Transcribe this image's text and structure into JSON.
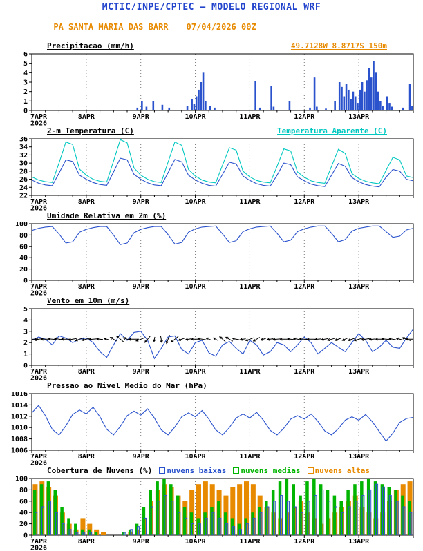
{
  "header": {
    "title": "MCTIC/INPE/CPTEC — MODELO REGIONAL WRF",
    "station": "PA SANTA MARIA DAS BARR",
    "run_datetime": "07/04/2026 00Z",
    "coords": "49.7128W 8.8717S 150m"
  },
  "colors": {
    "header_blue": "#2244cc",
    "orange": "#e78a00",
    "line_blue": "#2a52cc",
    "cyan": "#00c8c0",
    "green": "#00b400",
    "black": "#000000"
  },
  "x_axis": {
    "labels": [
      "7APR",
      "8APR",
      "9APR",
      "10APR",
      "11APR",
      "12APR",
      "13APR"
    ],
    "year": "2026",
    "hours_total": 168,
    "day_step": 24
  },
  "chart_data": [
    {
      "id": "precipitacao",
      "type": "bar",
      "title": "Precipitacao (mm/h)",
      "title_right": "49.7128W 8.8717S 150m",
      "title_right_color": "#e78a00",
      "ylim": [
        0,
        6
      ],
      "yticks": [
        0,
        1,
        2,
        3,
        4,
        5,
        6
      ],
      "color": "#2a52cc",
      "bars": [
        [
          46,
          0.3
        ],
        [
          48,
          1.0
        ],
        [
          50,
          0.4
        ],
        [
          53,
          1.0
        ],
        [
          57,
          0.6
        ],
        [
          60,
          0.3
        ],
        [
          68,
          0.5
        ],
        [
          70,
          1.2
        ],
        [
          71,
          0.7
        ],
        [
          72,
          1.5
        ],
        [
          73,
          2.2
        ],
        [
          74,
          3.0
        ],
        [
          75,
          4.0
        ],
        [
          76,
          1.0
        ],
        [
          78,
          0.5
        ],
        [
          80,
          0.3
        ],
        [
          98,
          3.1
        ],
        [
          100,
          0.3
        ],
        [
          105,
          2.6
        ],
        [
          106,
          0.4
        ],
        [
          113,
          1.0
        ],
        [
          122,
          0.3
        ],
        [
          124,
          3.5
        ],
        [
          125,
          0.4
        ],
        [
          129,
          0.2
        ],
        [
          133,
          1.0
        ],
        [
          135,
          3.0
        ],
        [
          136,
          2.5
        ],
        [
          137,
          1.5
        ],
        [
          138,
          2.8
        ],
        [
          139,
          2.2
        ],
        [
          140,
          1.2
        ],
        [
          141,
          2.0
        ],
        [
          142,
          1.5
        ],
        [
          143,
          0.8
        ],
        [
          144,
          2.2
        ],
        [
          145,
          3.0
        ],
        [
          146,
          2.0
        ],
        [
          147,
          3.2
        ],
        [
          148,
          4.5
        ],
        [
          149,
          3.5
        ],
        [
          150,
          5.2
        ],
        [
          151,
          4.0
        ],
        [
          152,
          2.0
        ],
        [
          153,
          1.0
        ],
        [
          154,
          0.5
        ],
        [
          156,
          1.5
        ],
        [
          157,
          0.8
        ],
        [
          158,
          0.4
        ],
        [
          163,
          0.3
        ],
        [
          166,
          2.8
        ],
        [
          167,
          0.5
        ]
      ]
    },
    {
      "id": "temperatura-2m",
      "type": "line",
      "title": "2-m Temperatura (C)",
      "title_right": "Temperatura Aparente (C)",
      "title_right_color": "#00c8c0",
      "ylim": [
        22,
        36
      ],
      "yticks": [
        22,
        24,
        26,
        28,
        30,
        32,
        34,
        36
      ],
      "x_step_hours": 3,
      "series": [
        {
          "name": "2-m Temperatura (C)",
          "color": "#2a52cc",
          "values": [
            25.8,
            25.0,
            24.6,
            24.4,
            27.5,
            30.8,
            30.4,
            27.0,
            26.0,
            25.2,
            24.7,
            24.5,
            27.8,
            31.2,
            30.8,
            27.2,
            26.0,
            25.1,
            24.6,
            24.4,
            27.6,
            30.9,
            30.3,
            27.0,
            25.8,
            25.0,
            24.5,
            24.3,
            27.2,
            30.2,
            29.8,
            26.8,
            25.7,
            24.9,
            24.5,
            24.3,
            27.0,
            30.0,
            29.6,
            26.6,
            25.6,
            24.8,
            24.4,
            24.2,
            27.0,
            29.9,
            29.2,
            26.4,
            25.4,
            24.7,
            24.3,
            24.1,
            26.5,
            28.4,
            28.0,
            26.0,
            25.6
          ]
        },
        {
          "name": "Temperatura Aparente (C)",
          "color": "#00c8c0",
          "values": [
            26.6,
            25.8,
            25.4,
            25.2,
            30.0,
            35.2,
            34.6,
            28.5,
            27.0,
            26.0,
            25.5,
            25.3,
            30.5,
            35.8,
            35.0,
            28.8,
            27.0,
            26.0,
            25.4,
            25.2,
            30.2,
            35.2,
            34.4,
            28.4,
            26.8,
            25.8,
            25.3,
            25.1,
            29.5,
            33.8,
            33.2,
            28.0,
            26.6,
            25.7,
            25.3,
            25.1,
            29.2,
            33.5,
            33.0,
            27.8,
            26.5,
            25.6,
            25.2,
            25.0,
            29.2,
            33.4,
            32.4,
            27.4,
            26.2,
            25.5,
            25.1,
            24.9,
            28.2,
            31.4,
            30.8,
            26.8,
            26.4
          ]
        }
      ]
    },
    {
      "id": "umidade-relativa",
      "type": "line",
      "title": "Umidade Relativa em 2m (%)",
      "ylim": [
        0,
        100
      ],
      "yticks": [
        0,
        20,
        40,
        60,
        80,
        100
      ],
      "x_step_hours": 3,
      "series": [
        {
          "name": "Umidade Relativa em 2m (%)",
          "color": "#2a52cc",
          "values": [
            88,
            92,
            94,
            95,
            82,
            66,
            68,
            85,
            90,
            93,
            95,
            95,
            80,
            63,
            66,
            84,
            90,
            93,
            95,
            95,
            81,
            64,
            67,
            85,
            91,
            94,
            95,
            96,
            82,
            67,
            70,
            86,
            91,
            94,
            95,
            96,
            83,
            68,
            71,
            86,
            91,
            94,
            96,
            96,
            83,
            68,
            72,
            87,
            92,
            94,
            96,
            96,
            86,
            76,
            78,
            89,
            92
          ]
        }
      ]
    },
    {
      "id": "vento-10m",
      "type": "wind",
      "title": "Vento em 10m (m/s)",
      "ylim": [
        0,
        5
      ],
      "yticks": [
        0,
        1,
        2,
        3,
        4,
        5
      ],
      "x_step_hours": 3,
      "arrow_y": 2.3,
      "series": [
        {
          "name": "Vento em 10m (m/s)",
          "color": "#2a52cc",
          "values": [
            2.2,
            2.5,
            2.3,
            1.8,
            2.6,
            2.4,
            2.0,
            2.3,
            2.4,
            2.0,
            1.2,
            0.7,
            1.8,
            2.8,
            2.2,
            2.9,
            3.0,
            2.2,
            0.6,
            1.5,
            2.5,
            2.6,
            1.4,
            1.0,
            2.0,
            2.2,
            1.1,
            0.8,
            1.8,
            2.1,
            1.5,
            1.0,
            2.2,
            1.8,
            0.9,
            1.2,
            2.0,
            1.8,
            1.2,
            1.8,
            2.5,
            2.0,
            1.0,
            1.5,
            2.0,
            1.6,
            1.2,
            2.0,
            2.8,
            2.2,
            1.2,
            1.6,
            2.2,
            1.6,
            1.5,
            2.4,
            3.2
          ]
        }
      ],
      "directions": [
        185,
        190,
        180,
        175,
        170,
        180,
        190,
        200,
        195,
        185,
        175,
        165,
        150,
        140,
        160,
        180,
        200,
        230,
        260,
        280,
        250,
        220,
        200,
        190,
        180,
        170,
        160,
        150,
        140,
        150,
        170,
        190,
        200,
        210,
        200,
        190,
        185,
        180,
        175,
        170,
        175,
        180,
        185,
        190,
        195,
        200,
        205,
        200,
        195,
        190,
        185,
        180,
        175,
        170,
        165,
        160,
        180
      ]
    },
    {
      "id": "pressao-nivel-mar",
      "type": "line",
      "title": "Pressao ao Nivel Medio do Mar (hPa)",
      "ylim": [
        1006,
        1016
      ],
      "yticks": [
        1006,
        1008,
        1010,
        1012,
        1014,
        1016
      ],
      "x_step_hours": 3,
      "series": [
        {
          "name": "Pressao ao Nivel Medio do Mar (hPa)",
          "color": "#2a52cc",
          "values": [
            1012.6,
            1013.9,
            1012.1,
            1009.7,
            1008.7,
            1010.3,
            1012.3,
            1013.1,
            1012.4,
            1013.6,
            1011.9,
            1009.7,
            1008.7,
            1010.2,
            1012.1,
            1012.9,
            1012.2,
            1013.3,
            1011.7,
            1009.6,
            1008.7,
            1010.1,
            1011.9,
            1012.6,
            1011.9,
            1013.0,
            1011.5,
            1009.6,
            1008.7,
            1010.0,
            1011.7,
            1012.4,
            1011.7,
            1012.7,
            1011.3,
            1009.5,
            1008.7,
            1009.9,
            1011.5,
            1012.1,
            1011.5,
            1012.4,
            1011.1,
            1009.4,
            1008.7,
            1009.8,
            1011.3,
            1011.9,
            1011.3,
            1012.3,
            1011.0,
            1009.3,
            1007.6,
            1009.0,
            1010.9,
            1011.6,
            1011.8
          ]
        }
      ]
    },
    {
      "id": "cobertura-nuvens",
      "type": "cloud",
      "title": "Cobertura de Nuvens (%)",
      "ylim": [
        0,
        100
      ],
      "yticks": [
        0,
        20,
        40,
        60,
        80,
        100
      ],
      "x_step_hours": 3,
      "legend": [
        {
          "label": "nuvens baixas",
          "color": "#2a52cc"
        },
        {
          "label": "nuvens medias",
          "color": "#00b400"
        },
        {
          "label": "nuvens altas",
          "color": "#e78a00"
        }
      ],
      "series": [
        {
          "name": "nuvens baixas",
          "color": "#2a52cc",
          "values": [
            40,
            50,
            60,
            40,
            20,
            10,
            5,
            5,
            5,
            0,
            0,
            0,
            0,
            5,
            10,
            15,
            30,
            50,
            60,
            70,
            60,
            40,
            30,
            20,
            20,
            30,
            40,
            30,
            20,
            15,
            10,
            20,
            30,
            40,
            50,
            60,
            70,
            60,
            50,
            40,
            60,
            70,
            80,
            60,
            50,
            40,
            50,
            60,
            70,
            80,
            90,
            85,
            70,
            60,
            50,
            40,
            30
          ]
        },
        {
          "name": "nuvens medias",
          "color": "#00b400",
          "values": [
            80,
            90,
            95,
            80,
            50,
            30,
            20,
            10,
            10,
            5,
            0,
            0,
            0,
            5,
            10,
            20,
            50,
            80,
            95,
            100,
            90,
            70,
            50,
            40,
            30,
            40,
            50,
            60,
            40,
            30,
            20,
            30,
            40,
            50,
            60,
            80,
            95,
            100,
            90,
            70,
            95,
            100,
            90,
            80,
            70,
            60,
            80,
            90,
            95,
            100,
            95,
            90,
            85,
            80,
            70,
            60,
            50
          ]
        },
        {
          "name": "nuvens altas",
          "color": "#e78a00",
          "values": [
            90,
            95,
            85,
            70,
            40,
            20,
            10,
            30,
            20,
            10,
            5,
            0,
            0,
            0,
            5,
            10,
            30,
            60,
            80,
            90,
            85,
            70,
            60,
            80,
            90,
            95,
            90,
            80,
            70,
            85,
            90,
            95,
            90,
            70,
            50,
            40,
            30,
            40,
            50,
            60,
            40,
            30,
            20,
            30,
            40,
            50,
            60,
            70,
            50,
            40,
            30,
            40,
            60,
            80,
            90,
            95,
            90
          ]
        }
      ]
    }
  ]
}
